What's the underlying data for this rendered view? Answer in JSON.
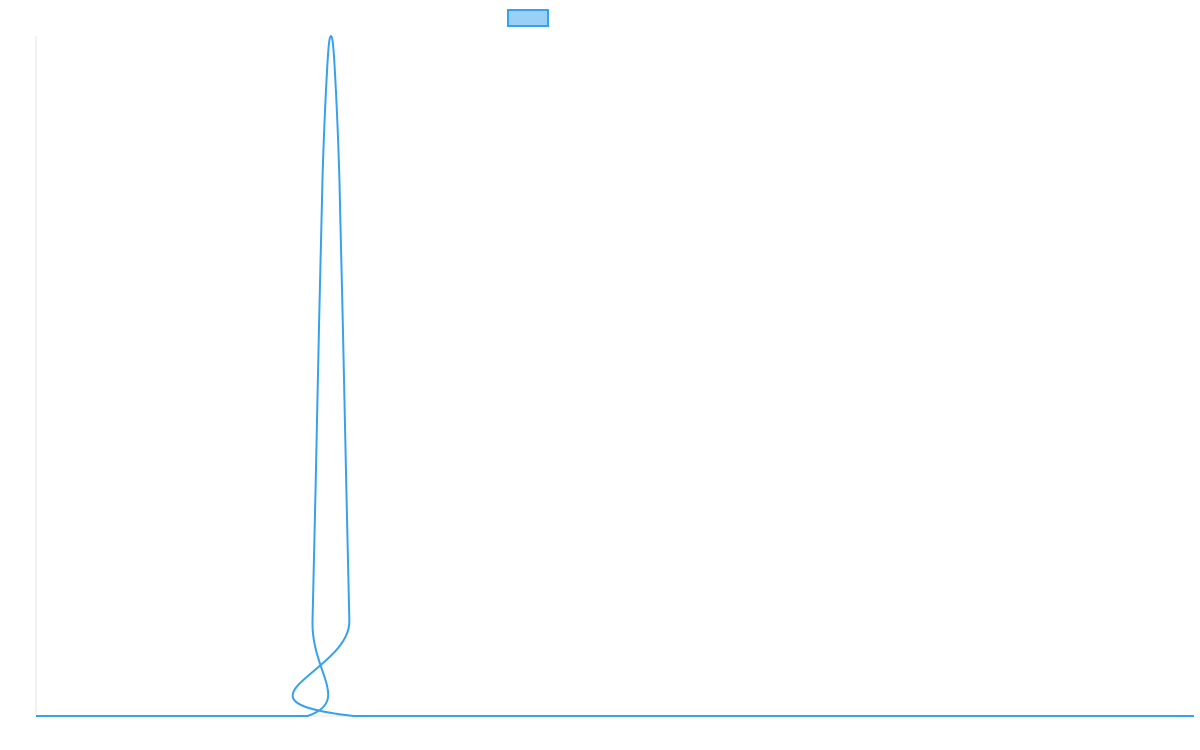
{
  "colors": {
    "series_line": "#36a2eb",
    "legend_fill": "#9ad0f5",
    "axis_line": "#e5e5e5",
    "background": "#ffffff"
  },
  "chart_data": {
    "type": "line",
    "title": "",
    "xlabel": "",
    "ylabel": "",
    "grid": false,
    "legend": "top-center",
    "xlim": [
      0,
      1
    ],
    "ylim": [
      0,
      1
    ],
    "series": [
      {
        "legend_label": "",
        "points": [
          [
            0.0,
            0.0
          ],
          [
            0.2345,
            0.0
          ],
          [
            0.2388,
            0.14
          ],
          [
            0.2431,
            0.47
          ],
          [
            0.2474,
            0.79
          ],
          [
            0.2517,
            0.96
          ],
          [
            0.2547,
            1.0
          ],
          [
            0.2577,
            0.96
          ],
          [
            0.262,
            0.79
          ],
          [
            0.2663,
            0.47
          ],
          [
            0.2706,
            0.14
          ],
          [
            0.2741,
            0.0
          ],
          [
            1.0,
            0.0
          ]
        ]
      }
    ]
  }
}
